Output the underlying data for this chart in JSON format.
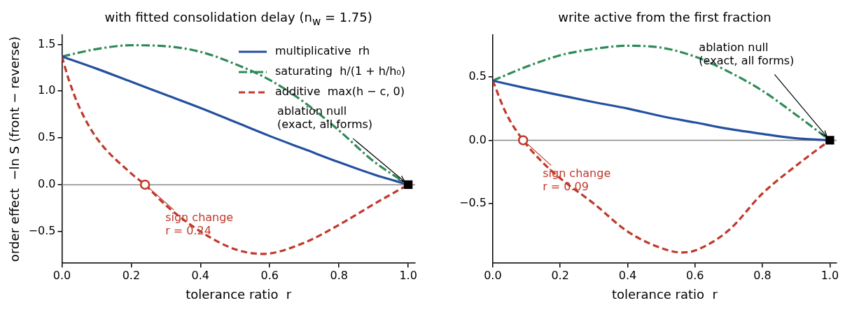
{
  "chart_data": [
    {
      "type": "line",
      "title": "with fitted consolidation delay (n$_{w}$ = 1.75)",
      "xlabel": "tolerance ratio  r",
      "ylabel": "order effect  −ln S (front − reverse)",
      "xlim": [
        0,
        1.02
      ],
      "ylim": [
        -0.84,
        1.6
      ],
      "xticks": [
        {
          "value": 0,
          "label": "0.0"
        },
        {
          "value": 0.2,
          "label": "0.2"
        },
        {
          "value": 0.4,
          "label": "0.4"
        },
        {
          "value": 0.6,
          "label": "0.6"
        },
        {
          "value": 0.8,
          "label": "0.8"
        },
        {
          "value": 1,
          "label": "1.0"
        }
      ],
      "yticks": [
        {
          "value": -0.5,
          "label": "−0.5"
        },
        {
          "value": 0,
          "label": "0.0"
        },
        {
          "value": 0.5,
          "label": "0.5"
        },
        {
          "value": 1,
          "label": "1.0"
        },
        {
          "value": 1.5,
          "label": "1.5"
        }
      ],
      "legend": "top right",
      "ref_lines": [
        {
          "axis": "y",
          "value": 0,
          "color": "#888888"
        }
      ],
      "series": [
        {
          "name": "multiplicative  rh",
          "color": "#2450a0",
          "line_style": "solid",
          "x": [
            0,
            0.1,
            0.2,
            0.3,
            0.4,
            0.5,
            0.6,
            0.7,
            0.8,
            0.9,
            1
          ],
          "values": [
            1.37,
            1.24,
            1.1,
            0.96,
            0.82,
            0.67,
            0.52,
            0.38,
            0.24,
            0.11,
            0
          ]
        },
        {
          "name": "saturating  h/(1 + h/h₀)",
          "color": "#2e8b57",
          "line_style": "dashdot",
          "x": [
            0,
            0.1,
            0.2,
            0.3,
            0.4,
            0.5,
            0.6,
            0.7,
            0.8,
            0.9,
            1
          ],
          "values": [
            1.37,
            1.45,
            1.49,
            1.48,
            1.42,
            1.29,
            1.12,
            0.88,
            0.58,
            0.25,
            0
          ]
        },
        {
          "name": "additive  max(h − c, 0)",
          "color": "#c0392b",
          "line_style": "dashed",
          "x": [
            0,
            0.02,
            0.05,
            0.1,
            0.2,
            0.24,
            0.3,
            0.4,
            0.5,
            0.58,
            0.7,
            0.8,
            0.9,
            1
          ],
          "values": [
            1.37,
            1.12,
            0.83,
            0.5,
            0.12,
            0,
            -0.22,
            -0.5,
            -0.69,
            -0.74,
            -0.62,
            -0.43,
            -0.21,
            0
          ]
        },
        {
          "type": "scatter",
          "color": "#c0392b",
          "marker": "circle",
          "x": [
            0.24
          ],
          "values": [
            0
          ]
        },
        {
          "type": "scatter",
          "color": "#000000",
          "marker": "square",
          "x": [
            1
          ],
          "values": [
            0
          ]
        }
      ],
      "annotations": [
        {
          "text": "sign change\nr = 0.24",
          "x": 0.24,
          "y": 0
        },
        {
          "text": "ablation null\n(exact, all forms)",
          "x": 1,
          "y": 0
        }
      ]
    },
    {
      "type": "line",
      "title": "write active from the first fraction",
      "xlabel": "tolerance ratio  r",
      "xlim": [
        0,
        1.02
      ],
      "ylim": [
        -0.97,
        0.83
      ],
      "xticks": [
        {
          "value": 0,
          "label": "0.0"
        },
        {
          "value": 0.2,
          "label": "0.2"
        },
        {
          "value": 0.4,
          "label": "0.4"
        },
        {
          "value": 0.6,
          "label": "0.6"
        },
        {
          "value": 0.8,
          "label": "0.8"
        },
        {
          "value": 1,
          "label": "1.0"
        }
      ],
      "yticks": [
        {
          "value": -0.5,
          "label": "−0.5"
        },
        {
          "value": 0,
          "label": "0.0"
        },
        {
          "value": 0.5,
          "label": "0.5"
        }
      ],
      "ref_lines": [
        {
          "axis": "y",
          "value": 0,
          "color": "#888888"
        }
      ],
      "series": [
        {
          "color": "#2450a0",
          "line_style": "solid",
          "x": [
            0,
            0.1,
            0.2,
            0.3,
            0.4,
            0.5,
            0.6,
            0.7,
            0.8,
            0.9,
            1
          ],
          "values": [
            0.47,
            0.41,
            0.355,
            0.3,
            0.25,
            0.19,
            0.14,
            0.09,
            0.05,
            0.015,
            0
          ]
        },
        {
          "color": "#2e8b57",
          "line_style": "dashdot",
          "x": [
            0,
            0.1,
            0.2,
            0.3,
            0.4,
            0.5,
            0.6,
            0.7,
            0.8,
            0.9,
            1
          ],
          "values": [
            0.47,
            0.58,
            0.67,
            0.72,
            0.745,
            0.73,
            0.66,
            0.54,
            0.39,
            0.2,
            0
          ]
        },
        {
          "color": "#c0392b",
          "line_style": "dashed",
          "x": [
            0,
            0.04,
            0.09,
            0.15,
            0.2,
            0.3,
            0.4,
            0.5,
            0.56,
            0.6,
            0.7,
            0.8,
            0.9,
            1
          ],
          "values": [
            0.47,
            0.21,
            0,
            -0.18,
            -0.3,
            -0.5,
            -0.72,
            -0.85,
            -0.885,
            -0.87,
            -0.71,
            -0.42,
            -0.2,
            0
          ]
        },
        {
          "type": "scatter",
          "color": "#c0392b",
          "marker": "circle",
          "x": [
            0.09
          ],
          "values": [
            0
          ]
        },
        {
          "type": "scatter",
          "color": "#000000",
          "marker": "square",
          "x": [
            1
          ],
          "values": [
            0
          ]
        }
      ],
      "annotations": [
        {
          "text": "sign change\nr = 0.09",
          "x": 0.09,
          "y": 0
        },
        {
          "text": "ablation null\n(exact, all forms)",
          "x": 1,
          "y": 0
        }
      ]
    }
  ]
}
